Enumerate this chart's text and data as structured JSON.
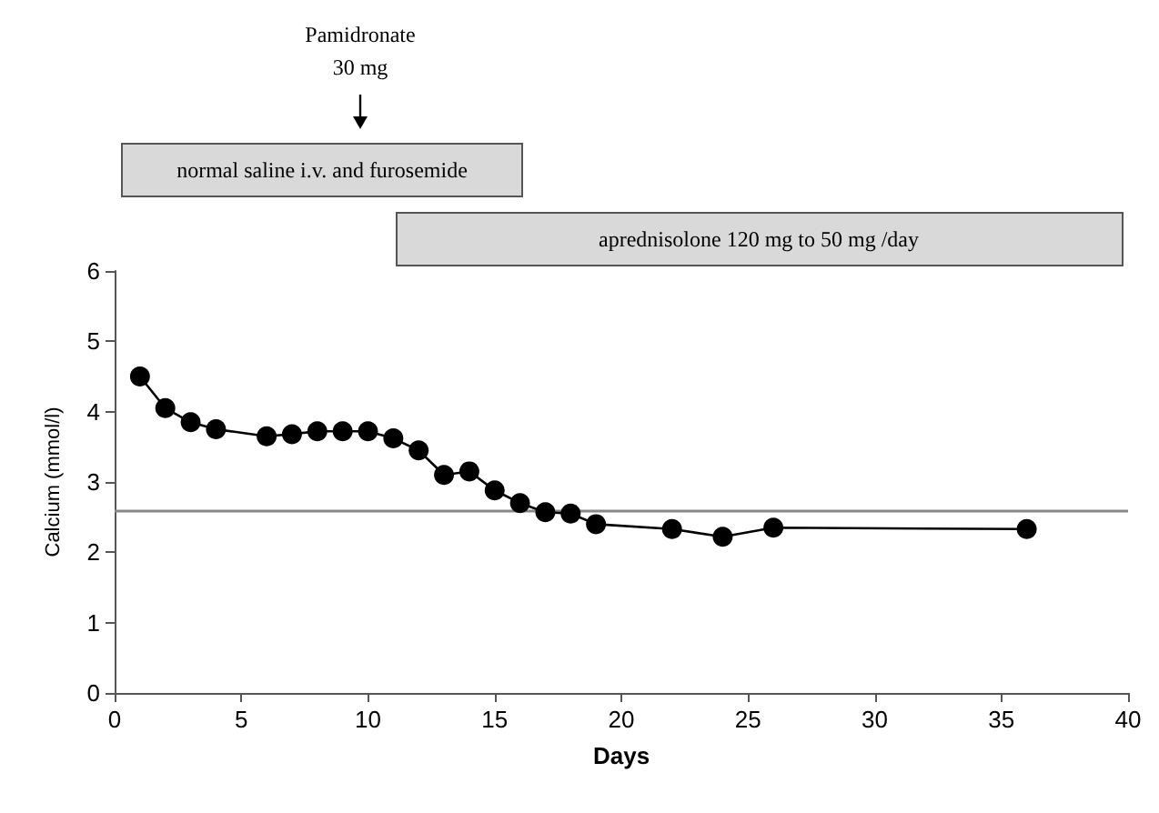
{
  "chart_data": {
    "type": "line",
    "xlabel": "Days",
    "ylabel": "Calcium (mmol/l)",
    "annotations": [
      "Pamidronate\n30 mg",
      "normal saline i.v. and furosemide",
      "aprednisolone 120 mg to 50 mg /day"
    ],
    "x": [
      1,
      2,
      3,
      4,
      6,
      7,
      8,
      9,
      10,
      11,
      12,
      13,
      14,
      15,
      16,
      17,
      18,
      19,
      22,
      24,
      26,
      36
    ],
    "series": [
      {
        "color": "#000000",
        "values": [
          4.5,
          4.05,
          3.85,
          3.75,
          3.65,
          3.68,
          3.72,
          3.72,
          3.72,
          3.62,
          3.45,
          3.1,
          3.15,
          2.88,
          2.7,
          2.57,
          2.55,
          2.4,
          2.33,
          2.22,
          2.35,
          2.33
        ]
      }
    ],
    "xlim": [
      0,
      40
    ],
    "xticks": [
      0,
      5,
      10,
      15,
      20,
      25,
      30,
      35,
      40
    ],
    "ylim": [
      0,
      6
    ],
    "yticks": [
      0,
      1,
      2,
      3,
      4,
      5,
      6
    ],
    "ref_lines": [
      {
        "axis": "y",
        "value": 2.6,
        "color": "#888888"
      }
    ],
    "grid": false,
    "marker": "circle",
    "line_style": "solid"
  }
}
